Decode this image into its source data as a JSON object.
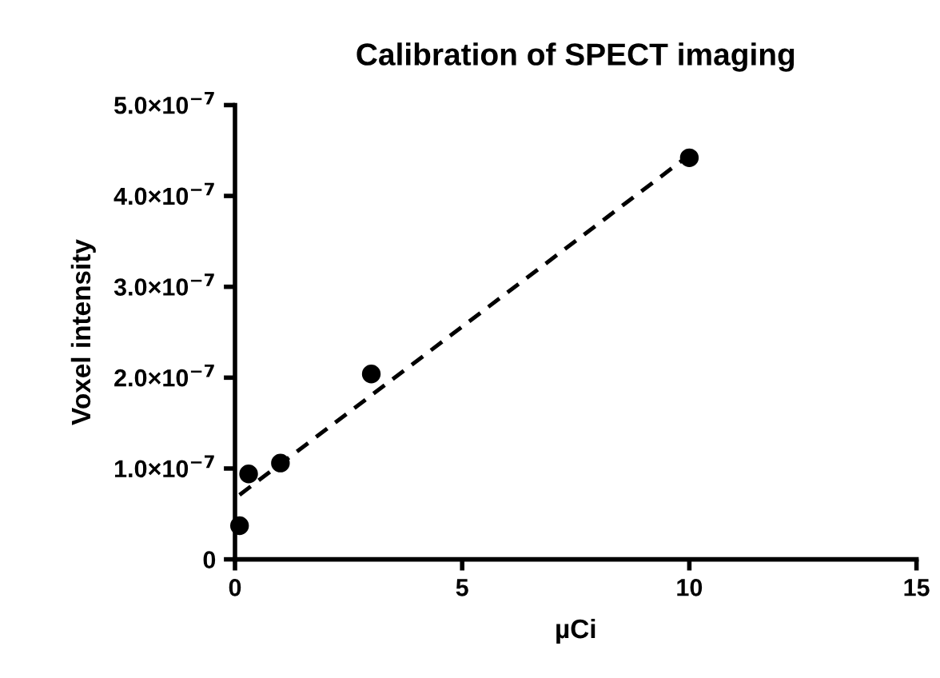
{
  "chart_data": {
    "type": "scatter",
    "title": "Calibration of SPECT imaging",
    "xlabel": "µCi",
    "ylabel": "Voxel intensity",
    "xlim": [
      0,
      15
    ],
    "xticks": [
      0,
      5,
      10,
      15
    ],
    "ylim": [
      0,
      5e-07
    ],
    "yticks": [
      0,
      {
        "value": 1e-07,
        "label": "1.0×10$^{−7}$"
      },
      {
        "value": 2e-07,
        "label": "2.0×10$^{−7}$"
      },
      {
        "value": 3e-07,
        "label": "3.0×10$^{−7}$"
      },
      {
        "value": 4e-07,
        "label": "4.0×10$^{−7}$"
      },
      {
        "value": 5e-07,
        "label": "5.0×10$^{−7}$"
      }
    ],
    "grid": false,
    "legend": false,
    "series": [
      {
        "color": "#000000",
        "marker": "circle",
        "x": [
          0.1,
          0.3,
          1,
          3,
          10
        ],
        "values": [
          3.7e-08,
          9.4e-08,
          1.06e-07,
          2.04e-07,
          4.42e-07
        ]
      },
      {
        "type": "line",
        "color": "#000000",
        "marker": "none",
        "line_style": "dashed",
        "x": [
          0.1,
          10
        ],
        "values": [
          7.1e-08,
          4.45e-07
        ]
      }
    ]
  }
}
